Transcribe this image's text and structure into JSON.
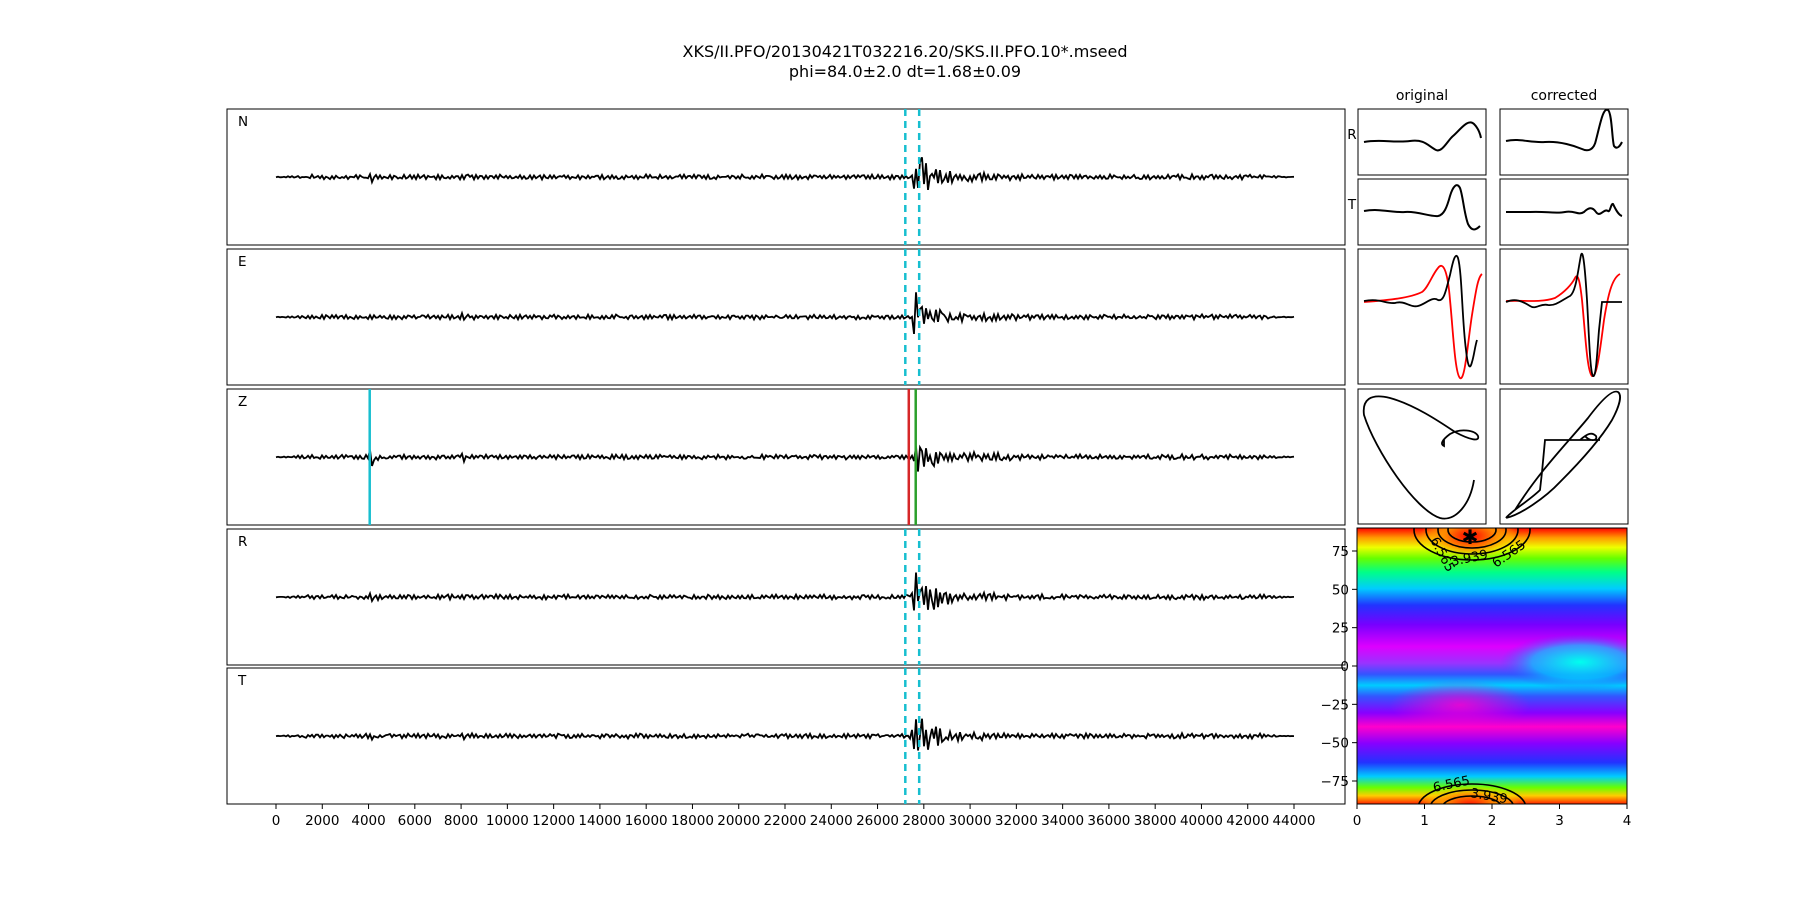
{
  "chart_data": {
    "type": "line",
    "title": "XKS/II.PFO/20130421T032216.20/SKS.II.PFO.10*.mseed",
    "subtitle": "phi=84.0±2.0 dt=1.68±0.09",
    "traces": [
      {
        "name": "N",
        "window_markers": [
          27200,
          27800
        ]
      },
      {
        "name": "E",
        "window_markers": [
          27200,
          27800
        ]
      },
      {
        "name": "Z",
        "phase_picks": [
          4050,
          27350,
          27650
        ]
      },
      {
        "name": "R",
        "window_markers": [
          27200,
          27800
        ]
      },
      {
        "name": "T",
        "window_markers": [
          27200,
          27800
        ]
      }
    ],
    "waveform_x_range": [
      0,
      44000
    ],
    "x_ticks": [
      "0",
      "2000",
      "4000",
      "6000",
      "8000",
      "10000",
      "12000",
      "14000",
      "16000",
      "18000",
      "20000",
      "22000",
      "24000",
      "26000",
      "28000",
      "30000",
      "32000",
      "34000",
      "36000",
      "38000",
      "40000",
      "42000",
      "44000"
    ],
    "inset_columns": [
      "original",
      "corrected"
    ],
    "inset_row_labels": [
      "R",
      "T"
    ],
    "grid_search": {
      "type": "heatmap",
      "xlim": [
        0,
        4
      ],
      "ylim": [
        -90,
        90
      ],
      "x_ticks": [
        "0",
        "1",
        "2",
        "3",
        "4"
      ],
      "y_ticks": [
        "75",
        "50",
        "25",
        "0",
        "−25",
        "−50",
        "−75"
      ],
      "contour_labels_top": [
        "6.565",
        "3.939",
        "6.565"
      ],
      "contour_labels_bottom": [
        "6.565",
        "3.939"
      ],
      "best_estimate": {
        "phi": 84.0,
        "dt": 1.68
      }
    },
    "colors": {
      "trace": "#000000",
      "window": "#17becf",
      "pick_red": "#d62728",
      "pick_green": "#2ca02c",
      "particle_original": "#ff0000"
    }
  }
}
